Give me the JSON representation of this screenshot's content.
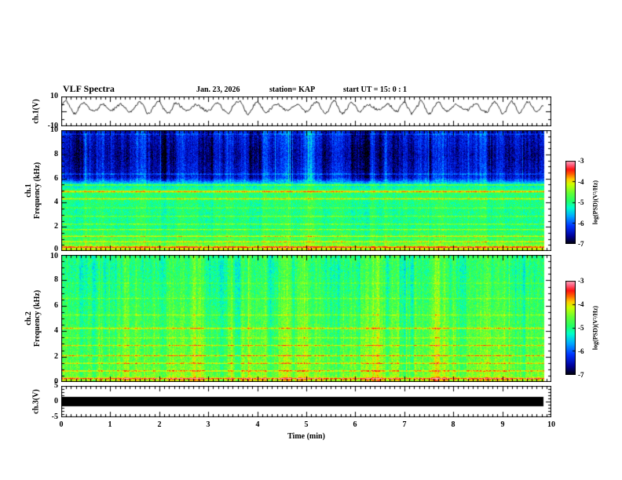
{
  "header": {
    "title": "VLF Spectra",
    "date": "Jan. 23, 2026",
    "station": "station= KAP",
    "start_ut": "start UT =  15: 0 : 1"
  },
  "axes": {
    "time_label": "Time (min)",
    "time_ticks": [
      "0",
      "1",
      "2",
      "3",
      "4",
      "5",
      "6",
      "7",
      "8",
      "9",
      "10"
    ],
    "wave_label": "ch.1(V)",
    "wave_y_top": "10",
    "wave_y_bottom": "-10",
    "spec1_ch": "ch.1",
    "spec2_ch": "ch.2",
    "freq_axis_label": "Frequency (kHz)",
    "freq_ticks": [
      "10",
      "8",
      "6",
      "4",
      "2",
      "0"
    ],
    "ch3_label": "ch.3(V)",
    "ch3_y_top": "5",
    "ch3_y_mid": "0",
    "ch3_y_bottom": "-5",
    "colorbar_label": "log(PSD)(V²/Hz)",
    "colorbar_ticks": [
      "-3",
      "-4",
      "-5",
      "-6",
      "-7"
    ]
  },
  "chart_data": {
    "time_range_min": [
      0,
      10
    ],
    "data_end_min": 9.85,
    "colormap": {
      "range": [
        -7,
        -3
      ],
      "stops": [
        [
          0.0,
          "#000000"
        ],
        [
          0.1,
          "#000099"
        ],
        [
          0.22,
          "#0033ff"
        ],
        [
          0.34,
          "#00aaff"
        ],
        [
          0.44,
          "#00ffcc"
        ],
        [
          0.52,
          "#22ff66"
        ],
        [
          0.62,
          "#66ff33"
        ],
        [
          0.72,
          "#ccff00"
        ],
        [
          0.78,
          "#ffcc00"
        ],
        [
          0.84,
          "#ff6600"
        ],
        [
          0.9,
          "#ff1111"
        ],
        [
          0.96,
          "#ff6688"
        ],
        [
          1.0,
          "#ffaabb"
        ]
      ]
    },
    "panels": [
      {
        "id": "ch1_waveform",
        "type": "line",
        "ylabel": "ch.1(V)",
        "y_range": [
          -10,
          10
        ],
        "description": "Quasi-periodic noisy voltage waveform, ~27 cycles over 10 min, oscillating mostly between -2 and 8 V",
        "gen": {
          "seed": 11,
          "base": 2.6,
          "carrier_cycles_per_min": 2.7,
          "amp": 3.1,
          "amp_mod": 1.3,
          "amp_mod_cycles": 0.55,
          "noise": 0.8
        }
      },
      {
        "id": "ch1_spectrogram",
        "type": "heatmap",
        "ylabel": "ch.1 Frequency (kHz)",
        "f_range": [
          0,
          10
        ],
        "description": "Spectrogram: dark blue low power above ~6 kHz with vertical burst striping; green mid power below 5 kHz; strong red/orange horizontal tone lines in lower band; high power near 0 kHz",
        "profile": [
          [
            0,
            -3.7
          ],
          [
            0.15,
            -4.1
          ],
          [
            0.8,
            -4.7
          ],
          [
            2,
            -5.0
          ],
          [
            3.5,
            -5.0
          ],
          [
            5,
            -4.9
          ],
          [
            5.6,
            -5.4
          ],
          [
            6.1,
            -6.3
          ],
          [
            8,
            -6.5
          ],
          [
            10,
            -6.3
          ]
        ],
        "hlines": [
          [
            0.35,
            0.1,
            1.1
          ],
          [
            0.8,
            0.08,
            0.9
          ],
          [
            1.25,
            0.08,
            1.0
          ],
          [
            1.8,
            0.08,
            0.8
          ],
          [
            2.25,
            0.08,
            0.7
          ],
          [
            2.9,
            0.08,
            0.6
          ],
          [
            3.6,
            0.08,
            0.5
          ],
          [
            4.35,
            0.1,
            0.9
          ],
          [
            4.95,
            0.12,
            1.3
          ],
          [
            5.5,
            0.1,
            0.9
          ],
          [
            6.4,
            0.08,
            0.6
          ],
          [
            9.7,
            0.08,
            0.4
          ]
        ],
        "gen": {
          "seed": 42,
          "stripe_strength": 0.5,
          "stripe_f_split": 5.8,
          "stripe_low_wt": 0.35,
          "bright_col_prob": 0.025,
          "bright_col_boost": 1.1,
          "noise": 0.28
        }
      },
      {
        "id": "ch2_spectrogram",
        "type": "heatmap",
        "ylabel": "ch.2 Frequency (kHz)",
        "f_range": [
          0,
          10
        ],
        "description": "Spectrogram: broadband green/yellow-green power across 0-10 kHz with vertical striping and red/orange horizontal tone lines concentrated below ~4.5 kHz",
        "profile": [
          [
            0,
            -3.9
          ],
          [
            0.3,
            -4.4
          ],
          [
            1,
            -4.6
          ],
          [
            3,
            -4.7
          ],
          [
            5,
            -4.8
          ],
          [
            7,
            -4.9
          ],
          [
            9,
            -5.0
          ],
          [
            10,
            -4.9
          ]
        ],
        "hlines": [
          [
            0.3,
            0.1,
            1.2
          ],
          [
            0.9,
            0.08,
            1.0
          ],
          [
            1.5,
            0.08,
            0.9
          ],
          [
            2.1,
            0.08,
            0.9
          ],
          [
            2.9,
            0.08,
            0.8
          ],
          [
            3.5,
            0.08,
            0.5
          ],
          [
            4.25,
            0.1,
            0.9
          ],
          [
            5.3,
            0.08,
            0.5
          ],
          [
            6.6,
            0.08,
            0.4
          ],
          [
            7.8,
            0.08,
            0.3
          ]
        ],
        "gen": {
          "seed": 77,
          "stripe_strength": 0.4,
          "stripe_f_split": 11,
          "stripe_low_wt": 1,
          "bright_col_prob": 0.02,
          "bright_col_boost": 0.8,
          "noise": 0.3
        }
      },
      {
        "id": "ch3_bar",
        "type": "area",
        "ylabel": "ch.3(V)",
        "y_range": [
          -5,
          5
        ],
        "bar_y": [
          -1.5,
          1.5
        ],
        "description": "Saturated/clipped constant signal drawn as a solid black band around 0 V for the full record"
      }
    ]
  }
}
